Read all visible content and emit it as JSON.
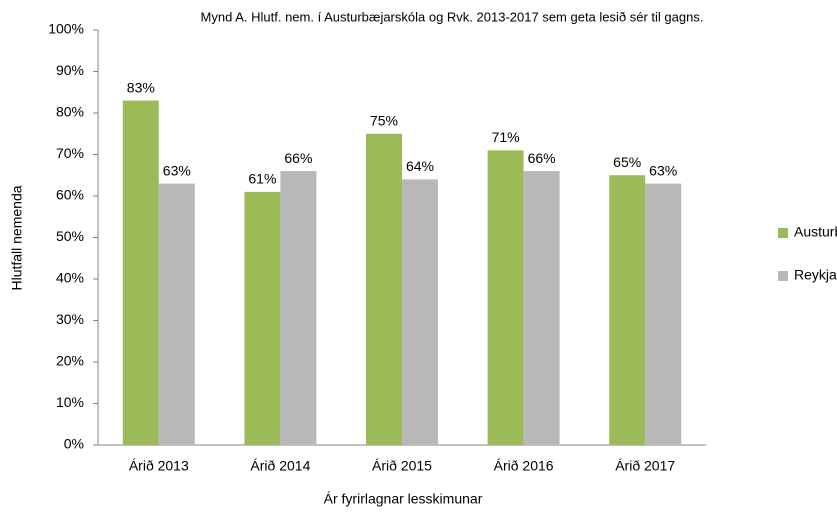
{
  "chart_data": {
    "type": "bar",
    "title": "Mynd A. Hlutf. nem. í Austurbæjarskóla  og Rvk. 2013-2017  sem geta lesið sér til gagns.",
    "x_label": "Ár fyrirlagnar lesskimunar",
    "y_label": "Hlutfall nemenda",
    "categories": [
      "Árið 2013",
      "Árið 2014",
      "Árið 2015",
      "Árið 2016",
      "Árið 2017"
    ],
    "series": [
      {
        "name": "Austurbæjarskóli",
        "color": "#9bbb59",
        "values": [
          83,
          61,
          75,
          71,
          65
        ],
        "value_labels": [
          "83%",
          "61%",
          "75%",
          "71%",
          "65%"
        ]
      },
      {
        "name": "Reykjavík",
        "color": "#b8b8b8",
        "values": [
          63,
          66,
          64,
          66,
          63
        ],
        "value_labels": [
          "63%",
          "66%",
          "64%",
          "66%",
          "63%"
        ]
      }
    ],
    "ylim": [
      0,
      100
    ],
    "yticks": [
      {
        "value": 0,
        "label": "0%"
      },
      {
        "value": 10,
        "label": "10%"
      },
      {
        "value": 20,
        "label": "20%"
      },
      {
        "value": 30,
        "label": "30%"
      },
      {
        "value": 40,
        "label": "40%"
      },
      {
        "value": 50,
        "label": "50%"
      },
      {
        "value": 60,
        "label": "60%"
      },
      {
        "value": 70,
        "label": "70%"
      },
      {
        "value": 80,
        "label": "80%"
      },
      {
        "value": 90,
        "label": "90%"
      },
      {
        "value": 100,
        "label": "100%"
      }
    ],
    "grid": false,
    "legend": "right"
  }
}
